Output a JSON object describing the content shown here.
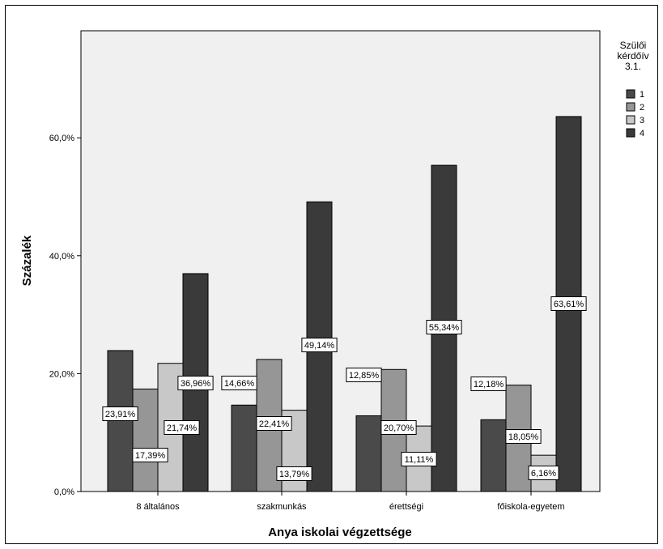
{
  "chart_data": {
    "type": "bar",
    "categories": [
      "8 általános",
      "szakmunkás",
      "érettségi",
      "főiskola-egyetem"
    ],
    "series": [
      {
        "name": "1",
        "values": [
          23.91,
          14.66,
          12.85,
          12.18
        ],
        "labels": [
          "23,91%",
          "14,66%",
          "12,85%",
          "12,18%"
        ],
        "color": "#4a4a4a"
      },
      {
        "name": "2",
        "values": [
          17.39,
          22.41,
          20.7,
          18.05
        ],
        "labels": [
          "17,39%",
          "22,41%",
          "20,70%",
          "18,05%"
        ],
        "color": "#969696"
      },
      {
        "name": "3",
        "values": [
          21.74,
          13.79,
          11.11,
          6.16
        ],
        "labels": [
          "21,74%",
          "13,79%",
          "11,11%",
          "6,16%"
        ],
        "color": "#c8c8c8"
      },
      {
        "name": "4",
        "values": [
          36.96,
          49.14,
          55.34,
          63.61
        ],
        "labels": [
          "36,96%",
          "49,14%",
          "55,34%",
          "63,61%"
        ],
        "color": "#3a3a3a"
      }
    ],
    "xlabel": "Anya iskolai végzettsége",
    "ylabel": "Százalék",
    "ylim": [
      0,
      75
    ],
    "yticks": [
      0,
      20,
      40,
      60
    ],
    "ytick_labels": [
      "0,0%",
      "20,0%",
      "40,0%",
      "60,0%"
    ],
    "legend": {
      "title_lines": [
        "Szülői",
        "kérdőív",
        "3.1."
      ],
      "placement": "top-right outside"
    },
    "grid": false,
    "plot_background": "#f0f0f0"
  }
}
